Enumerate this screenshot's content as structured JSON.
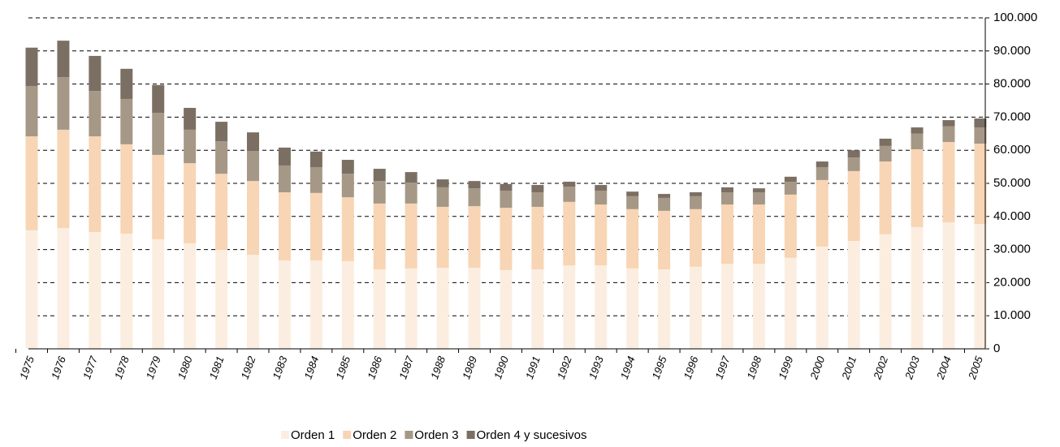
{
  "chart_data": {
    "type": "stacked_bar",
    "categories": [
      "1975",
      "1976",
      "1977",
      "1978",
      "1979",
      "1980",
      "1981",
      "1982",
      "1983",
      "1984",
      "1985",
      "1986",
      "1987",
      "1988",
      "1989",
      "1990",
      "1991",
      "1992",
      "1993",
      "1994",
      "1995",
      "1996",
      "1997",
      "1998",
      "1999",
      "2000",
      "2001",
      "2002",
      "2003",
      "2004",
      "2005"
    ],
    "series": [
      {
        "name": "Orden 1",
        "color": "#fbeee0",
        "values": [
          35800,
          36500,
          35300,
          34800,
          33100,
          31900,
          29900,
          28400,
          26700,
          26700,
          26500,
          24000,
          24300,
          24500,
          24500,
          23800,
          24000,
          25200,
          25200,
          24300,
          24000,
          24800,
          25700,
          25700,
          27500,
          30900,
          32600,
          34600,
          36800,
          38200,
          37700
        ]
      },
      {
        "name": "Orden 2",
        "color": "#f7d5b5",
        "values": [
          28400,
          29700,
          28900,
          27000,
          25500,
          24200,
          23000,
          22300,
          20600,
          20400,
          19300,
          19900,
          19600,
          18400,
          18600,
          18800,
          18900,
          19200,
          18400,
          17900,
          17700,
          17400,
          17900,
          17900,
          19100,
          20100,
          21100,
          22000,
          23500,
          24300,
          24300
        ]
      },
      {
        "name": "Orden 3",
        "color": "#a69886",
        "values": [
          15200,
          15900,
          13700,
          13700,
          12700,
          10100,
          9800,
          9100,
          8100,
          7800,
          7100,
          6800,
          6300,
          5900,
          5400,
          5200,
          4400,
          4600,
          4200,
          3900,
          3900,
          3900,
          3700,
          3700,
          3900,
          3900,
          4100,
          4700,
          4700,
          4700,
          4900
        ]
      },
      {
        "name": "Orden 4 y sucesivos",
        "color": "#7b6f63",
        "values": [
          11600,
          11000,
          10600,
          9100,
          8400,
          6600,
          5900,
          5600,
          5400,
          4700,
          4200,
          3700,
          3200,
          2400,
          2200,
          2000,
          2200,
          1500,
          1700,
          1400,
          1200,
          1200,
          1500,
          1200,
          1500,
          1700,
          2200,
          2200,
          1900,
          1900,
          2700
        ]
      }
    ],
    "ylim": [
      0,
      100000
    ],
    "yticks": [
      0,
      {
        "value": 10000,
        "label": "10.000"
      },
      {
        "value": 20000,
        "label": "20.000"
      },
      {
        "value": 30000,
        "label": "30.000"
      },
      {
        "value": 40000,
        "label": "40.000"
      },
      {
        "value": 50000,
        "label": "50.000"
      },
      {
        "value": 60000,
        "label": "60.000"
      },
      {
        "value": 70000,
        "label": "70.000"
      },
      {
        "value": 80000,
        "label": "80.000"
      },
      {
        "value": 90000,
        "label": "90.000"
      },
      {
        "value": 100000,
        "label": "100.000"
      }
    ],
    "grid": true,
    "y_axis_side": "right",
    "legend": "bottom"
  }
}
